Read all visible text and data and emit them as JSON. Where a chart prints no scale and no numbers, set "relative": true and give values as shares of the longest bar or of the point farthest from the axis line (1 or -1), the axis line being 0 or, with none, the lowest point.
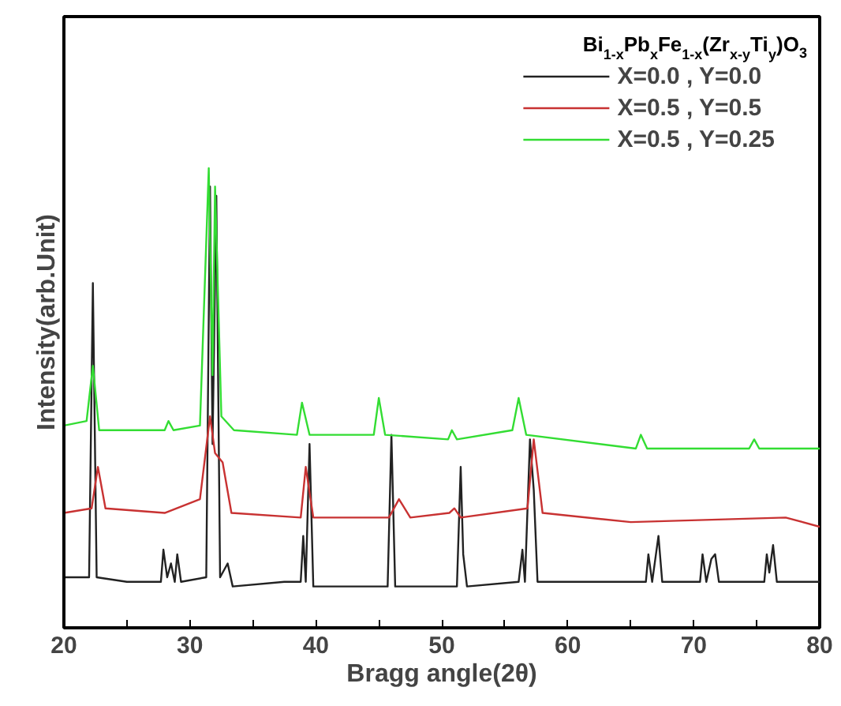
{
  "chart_data": {
    "type": "line",
    "relative": true,
    "xlabel": "Bragg angle(2θ)",
    "ylabel": "Intensity(arb.Unit)",
    "legend_title": "Bi$_{1-x}$Pb$_{x}$Fe$_{1-x}$(Zr$_{x-y}$Ti$_{y}$)O$_{3}$",
    "legend": "top right",
    "grid": false,
    "marker": "none",
    "line_style": "solid",
    "xlim": [
      20,
      80
    ],
    "xticks": [
      20,
      {
        "value": 25,
        "label": null
      },
      30,
      {
        "value": 35,
        "label": null
      },
      40,
      {
        "value": 45,
        "label": null
      },
      50,
      {
        "value": 55,
        "label": null
      },
      60,
      {
        "value": 65,
        "label": null
      },
      70,
      {
        "value": 75,
        "label": null
      },
      80
    ],
    "series": [
      {
        "name": "X=0.0 , Y=0.0",
        "color": "#222222",
        "x": [
          20,
          22.0,
          22.3,
          22.6,
          25,
          27.7,
          27.9,
          28.2,
          28.5,
          28.8,
          29.0,
          29.3,
          31.3,
          31.6,
          31.8,
          32.1,
          32.4,
          33.0,
          33.4,
          37.5,
          38.8,
          39.0,
          39.2,
          39.5,
          39.8,
          45.7,
          46.0,
          46.3,
          51.2,
          51.5,
          51.7,
          52.0,
          56.1,
          56.4,
          56.6,
          57.0,
          57.3,
          57.6,
          62,
          66.2,
          66.4,
          66.7,
          67.2,
          67.5,
          70.5,
          70.7,
          71.0,
          71.4,
          71.7,
          72.0,
          75.6,
          75.8,
          76.0,
          76.3,
          76.6,
          80
        ],
        "values": [
          0.11,
          0.11,
          0.75,
          0.11,
          0.1,
          0.1,
          0.17,
          0.11,
          0.14,
          0.1,
          0.16,
          0.1,
          0.11,
          0.96,
          0.4,
          0.94,
          0.11,
          0.14,
          0.09,
          0.1,
          0.1,
          0.2,
          0.1,
          0.4,
          0.09,
          0.09,
          0.42,
          0.09,
          0.09,
          0.35,
          0.16,
          0.09,
          0.1,
          0.17,
          0.1,
          0.41,
          0.3,
          0.1,
          0.1,
          0.1,
          0.16,
          0.1,
          0.2,
          0.1,
          0.1,
          0.16,
          0.1,
          0.15,
          0.16,
          0.1,
          0.1,
          0.16,
          0.12,
          0.18,
          0.1,
          0.1
        ]
      },
      {
        "name": "X=0.5 , Y=0.5",
        "color": "#c83232",
        "x": [
          20,
          22.2,
          22.7,
          23.3,
          28,
          30.8,
          31.6,
          32.0,
          32.6,
          33.3,
          38.8,
          39.2,
          39.8,
          45.8,
          46.6,
          47.5,
          50.6,
          51.0,
          51.5,
          56.8,
          57.3,
          58.0,
          65,
          77.3,
          80
        ],
        "values": [
          0.25,
          0.26,
          0.35,
          0.26,
          0.25,
          0.28,
          0.46,
          0.38,
          0.36,
          0.25,
          0.24,
          0.35,
          0.24,
          0.24,
          0.28,
          0.24,
          0.25,
          0.26,
          0.24,
          0.26,
          0.41,
          0.25,
          0.23,
          0.24,
          0.22
        ]
      },
      {
        "name": "X=0.5 , Y=0.25",
        "color": "#33dd33",
        "x": [
          20,
          21.8,
          22.3,
          22.8,
          28.0,
          28.3,
          28.7,
          30.8,
          31.5,
          31.8,
          32.0,
          32.5,
          33.5,
          38.5,
          38.9,
          39.5,
          44.6,
          45.0,
          45.5,
          50.5,
          50.8,
          51.2,
          55.6,
          56.1,
          56.7,
          65.4,
          65.8,
          66.3,
          74.4,
          74.8,
          75.2,
          80
        ],
        "values": [
          0.44,
          0.45,
          0.57,
          0.43,
          0.43,
          0.45,
          0.43,
          0.44,
          1.0,
          0.55,
          0.96,
          0.46,
          0.43,
          0.42,
          0.49,
          0.42,
          0.42,
          0.5,
          0.42,
          0.41,
          0.43,
          0.41,
          0.43,
          0.5,
          0.42,
          0.39,
          0.42,
          0.39,
          0.39,
          0.41,
          0.39,
          0.39
        ]
      }
    ]
  }
}
